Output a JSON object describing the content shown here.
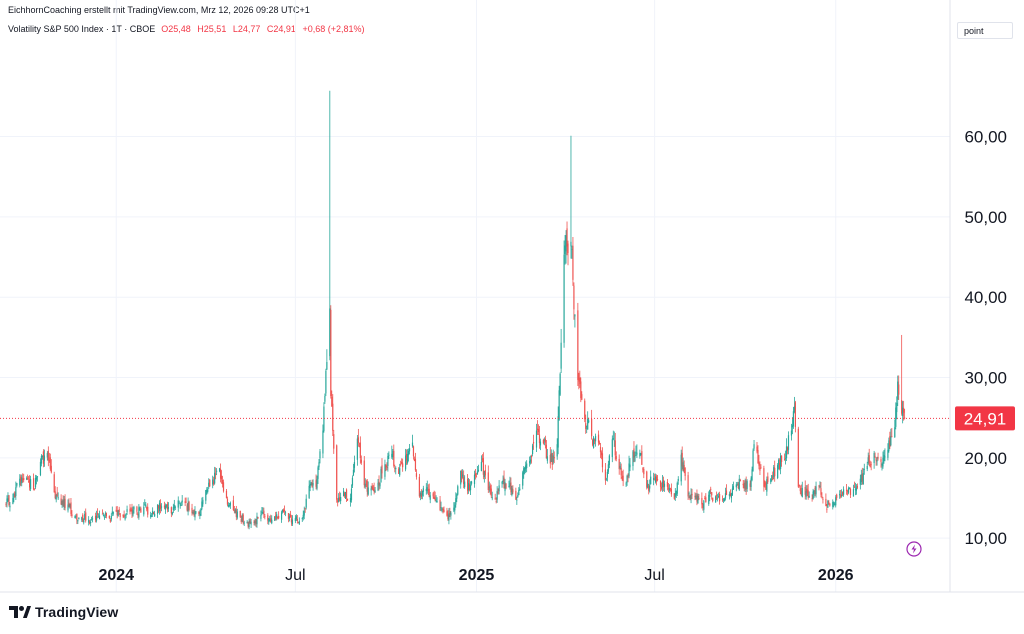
{
  "header": {
    "attribution": "EichhornCoaching erstellt mit TradingView.com, Mrz 12, 2026 09:28 UTC+1"
  },
  "legend": {
    "symbol": "Volatility S&P 500 Index · 1T · CBOE",
    "open": "O25,48",
    "high": "H25,51",
    "low": "L24,77",
    "close": "C24,91",
    "change": "+0,68 (+2,81%)"
  },
  "scale_button": "point",
  "price_tag": "24,91",
  "footer": {
    "brand": "TradingView"
  },
  "icons": [
    "lightning-icon",
    "tradingview-logo-icon"
  ],
  "colors": {
    "up": "#26a69a",
    "down": "#ef5350",
    "price_tag": "#f23645",
    "grid": "#f0f3fa"
  },
  "chart_data": {
    "type": "candlestick",
    "title": "Volatility S&P 500 Index",
    "y_ticks": [
      "10,00",
      "20,00",
      "30,00",
      "40,00",
      "50,00",
      "60,00"
    ],
    "x_ticks": [
      "2024",
      "Jul",
      "2025",
      "Jul",
      "2026"
    ],
    "ylim": [
      3.3,
      77
    ],
    "xlim": [
      "2023-09-11",
      "2026-04-21"
    ],
    "last_price": 24.91,
    "grid": true,
    "approx_daily_closes": [
      [
        "2023-09-11",
        14.2
      ],
      [
        "2023-09-18",
        15.0
      ],
      [
        "2023-09-25",
        17.4
      ],
      [
        "2023-10-02",
        17.5
      ],
      [
        "2023-10-09",
        16.1
      ],
      [
        "2023-10-16",
        19.5
      ],
      [
        "2023-10-23",
        20.6
      ],
      [
        "2023-10-30",
        15.7
      ],
      [
        "2023-11-06",
        14.2
      ],
      [
        "2023-11-13",
        14.2
      ],
      [
        "2023-11-20",
        12.7
      ],
      [
        "2023-11-27",
        12.6
      ],
      [
        "2023-12-04",
        12.3
      ],
      [
        "2023-12-11",
        12.3
      ],
      [
        "2023-12-18",
        13.0
      ],
      [
        "2023-12-25",
        12.5
      ],
      [
        "2024-01-01",
        13.3
      ],
      [
        "2024-01-08",
        12.7
      ],
      [
        "2024-01-15",
        13.3
      ],
      [
        "2024-01-22",
        13.3
      ],
      [
        "2024-01-29",
        13.9
      ],
      [
        "2024-02-05",
        12.9
      ],
      [
        "2024-02-12",
        14.2
      ],
      [
        "2024-02-19",
        13.8
      ],
      [
        "2024-02-26",
        13.1
      ],
      [
        "2024-03-04",
        14.7
      ],
      [
        "2024-03-11",
        14.4
      ],
      [
        "2024-03-18",
        13.1
      ],
      [
        "2024-03-25",
        13.0
      ],
      [
        "2024-04-01",
        16.0
      ],
      [
        "2024-04-08",
        17.3
      ],
      [
        "2024-04-15",
        18.7
      ],
      [
        "2024-04-22",
        15.0
      ],
      [
        "2024-04-29",
        13.5
      ],
      [
        "2024-05-06",
        12.6
      ],
      [
        "2024-05-13",
        12.0
      ],
      [
        "2024-05-20",
        11.9
      ],
      [
        "2024-05-27",
        12.9
      ],
      [
        "2024-06-03",
        12.2
      ],
      [
        "2024-06-10",
        12.7
      ],
      [
        "2024-06-17",
        13.2
      ],
      [
        "2024-06-24",
        12.4
      ],
      [
        "2024-07-01",
        12.5
      ],
      [
        "2024-07-08",
        12.5
      ],
      [
        "2024-07-15",
        16.5
      ],
      [
        "2024-07-22",
        16.4
      ],
      [
        "2024-07-29",
        23.4
      ],
      [
        "2024-08-05",
        38.6
      ],
      [
        "2024-08-06",
        27.7
      ],
      [
        "2024-08-12",
        14.8
      ],
      [
        "2024-08-19",
        15.9
      ],
      [
        "2024-08-26",
        15.0
      ],
      [
        "2024-09-02",
        22.4
      ],
      [
        "2024-09-09",
        16.6
      ],
      [
        "2024-09-16",
        16.2
      ],
      [
        "2024-09-23",
        16.9
      ],
      [
        "2024-09-30",
        19.2
      ],
      [
        "2024-10-07",
        20.5
      ],
      [
        "2024-10-14",
        18.0
      ],
      [
        "2024-10-21",
        20.3
      ],
      [
        "2024-10-28",
        21.9
      ],
      [
        "2024-11-04",
        15.2
      ],
      [
        "2024-11-11",
        16.1
      ],
      [
        "2024-11-18",
        15.2
      ],
      [
        "2024-11-25",
        13.5
      ],
      [
        "2024-12-02",
        12.8
      ],
      [
        "2024-12-09",
        13.8
      ],
      [
        "2024-12-16",
        18.4
      ],
      [
        "2024-12-23",
        15.9
      ],
      [
        "2024-12-30",
        17.9
      ],
      [
        "2025-01-06",
        19.5
      ],
      [
        "2025-01-13",
        16.0
      ],
      [
        "2025-01-20",
        14.9
      ],
      [
        "2025-01-27",
        17.0
      ],
      [
        "2025-02-03",
        16.5
      ],
      [
        "2025-02-10",
        14.8
      ],
      [
        "2025-02-17",
        18.2
      ],
      [
        "2025-02-24",
        19.6
      ],
      [
        "2025-03-03",
        23.4
      ],
      [
        "2025-03-10",
        21.8
      ],
      [
        "2025-03-17",
        19.3
      ],
      [
        "2025-03-24",
        21.7
      ],
      [
        "2025-03-31",
        45.3
      ],
      [
        "2025-04-07",
        46.9
      ],
      [
        "2025-04-14",
        29.7
      ],
      [
        "2025-04-21",
        24.8
      ],
      [
        "2025-04-28",
        22.7
      ],
      [
        "2025-05-05",
        21.9
      ],
      [
        "2025-05-12",
        17.2
      ],
      [
        "2025-05-19",
        22.3
      ],
      [
        "2025-05-26",
        18.6
      ],
      [
        "2025-06-02",
        16.8
      ],
      [
        "2025-06-09",
        20.8
      ],
      [
        "2025-06-16",
        20.6
      ],
      [
        "2025-06-23",
        16.3
      ],
      [
        "2025-06-30",
        17.5
      ],
      [
        "2025-07-07",
        16.4
      ],
      [
        "2025-07-14",
        16.4
      ],
      [
        "2025-07-21",
        14.9
      ],
      [
        "2025-07-28",
        20.4
      ],
      [
        "2025-08-04",
        15.2
      ],
      [
        "2025-08-11",
        15.1
      ],
      [
        "2025-08-18",
        14.2
      ],
      [
        "2025-08-25",
        15.4
      ],
      [
        "2025-09-01",
        15.2
      ],
      [
        "2025-09-08",
        14.8
      ],
      [
        "2025-09-15",
        15.5
      ],
      [
        "2025-09-22",
        16.7
      ],
      [
        "2025-09-29",
        16.6
      ],
      [
        "2025-10-06",
        16.4
      ],
      [
        "2025-10-10",
        21.7
      ],
      [
        "2025-10-13",
        20.8
      ],
      [
        "2025-10-20",
        16.4
      ],
      [
        "2025-10-27",
        17.4
      ],
      [
        "2025-11-03",
        19.1
      ],
      [
        "2025-11-10",
        19.8
      ],
      [
        "2025-11-17",
        23.4
      ],
      [
        "2025-11-20",
        26.4
      ],
      [
        "2025-11-24",
        16.4
      ],
      [
        "2025-12-01",
        15.4
      ],
      [
        "2025-12-08",
        14.9
      ],
      [
        "2025-12-15",
        16.5
      ],
      [
        "2025-12-22",
        14.0
      ],
      [
        "2025-12-29",
        14.5
      ],
      [
        "2026-01-05",
        15.5
      ],
      [
        "2026-01-12",
        15.9
      ],
      [
        "2026-01-19",
        16.1
      ],
      [
        "2026-01-26",
        17.4
      ],
      [
        "2026-02-02",
        19.0
      ],
      [
        "2026-02-09",
        20.6
      ],
      [
        "2026-02-16",
        19.5
      ],
      [
        "2026-02-23",
        21.0
      ],
      [
        "2026-03-02",
        23.8
      ],
      [
        "2026-03-05",
        29.5
      ],
      [
        "2026-03-09",
        25.5
      ],
      [
        "2026-03-12",
        24.91
      ]
    ],
    "notable_highs": [
      [
        "2024-08-05",
        65.7
      ],
      [
        "2025-04-07",
        60.1
      ],
      [
        "2026-03-09",
        35.3
      ]
    ]
  }
}
